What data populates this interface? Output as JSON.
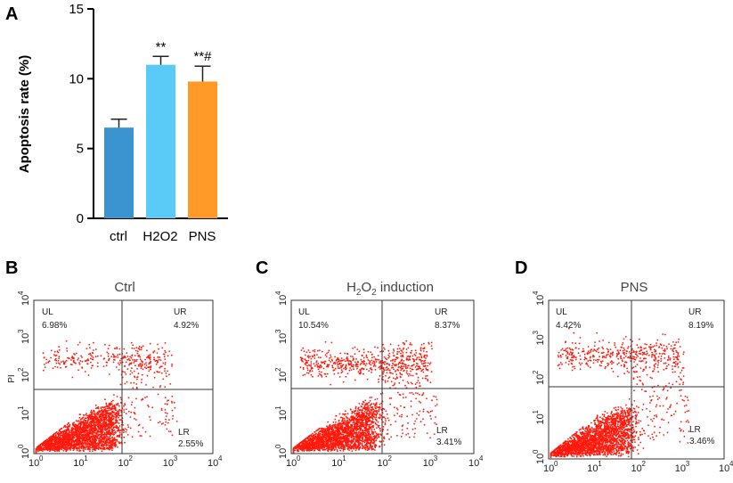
{
  "chart_data": [
    {
      "id": "A",
      "type": "bar",
      "panel_label": "A",
      "ylabel": "Apoptosis rate (%)",
      "ylim": [
        0,
        15
      ],
      "yticks": [
        "0",
        "5",
        "10",
        "15"
      ],
      "categories": [
        "ctrl",
        "H2O2",
        "PNS"
      ],
      "values": [
        6.5,
        11.0,
        9.8
      ],
      "errors": [
        0.6,
        0.6,
        1.1
      ],
      "colors": [
        "#3b93cf",
        "#5acbf6",
        "#ff9a29"
      ],
      "annotations": [
        "",
        "**",
        "**#"
      ]
    },
    {
      "id": "B",
      "type": "scatter",
      "panel_label": "B",
      "title": "Ctrl",
      "ylabel": "PI",
      "xticks": [
        "10",
        "10",
        "10",
        "10",
        "10"
      ],
      "xtick_exponents": [
        "0",
        "1",
        "2",
        "3",
        "4"
      ],
      "yticks": [
        "10",
        "10",
        "10",
        "10",
        "10"
      ],
      "ytick_exponents": [
        "0",
        "1",
        "2",
        "3",
        "4"
      ],
      "quadrant_gate": [
        1.95,
        1.55
      ],
      "quadrants": {
        "UL": {
          "label": "UL",
          "value": "6.98%"
        },
        "UR": {
          "label": "UR",
          "value": "4.92%"
        },
        "LR": {
          "label": "LR",
          "value": "2.55%"
        }
      }
    },
    {
      "id": "C",
      "type": "scatter",
      "panel_label": "C",
      "title": {
        "main": "H",
        "sub1": "2",
        "mid": "O",
        "sub2": "2",
        "rest": " induction"
      },
      "xticks": [
        "10",
        "10",
        "10",
        "10",
        "10"
      ],
      "xtick_exponents": [
        "0",
        "1",
        "2",
        "3",
        "4"
      ],
      "yticks": [
        "10",
        "10",
        "10",
        "10",
        "10"
      ],
      "ytick_exponents": [
        "0",
        "1",
        "2",
        "3",
        "4"
      ],
      "quadrant_gate": [
        1.95,
        1.6
      ],
      "quadrants": {
        "UL": {
          "label": "UL",
          "value": "10.54%"
        },
        "UR": {
          "label": "UR",
          "value": "8.37%"
        },
        "LR": {
          "label": "LR",
          "value": "3.41%"
        }
      }
    },
    {
      "id": "D",
      "type": "scatter",
      "panel_label": "D",
      "title": "PNS",
      "xticks": [
        "10",
        "10",
        "10",
        "10",
        "10"
      ],
      "xtick_exponents": [
        "0",
        "1",
        "2",
        "3",
        "4"
      ],
      "yticks": [
        "10",
        "10",
        "10",
        "10",
        "10"
      ],
      "ytick_exponents": [
        "0",
        "1",
        "2",
        "3",
        "4"
      ],
      "quadrant_gate": [
        1.95,
        1.8
      ],
      "quadrants": {
        "UL": {
          "label": "UL",
          "value": "4.42%"
        },
        "UR": {
          "label": "UR",
          "value": "8.19%"
        },
        "LR": {
          "label": "LR",
          "value": "3.46%"
        }
      }
    }
  ]
}
